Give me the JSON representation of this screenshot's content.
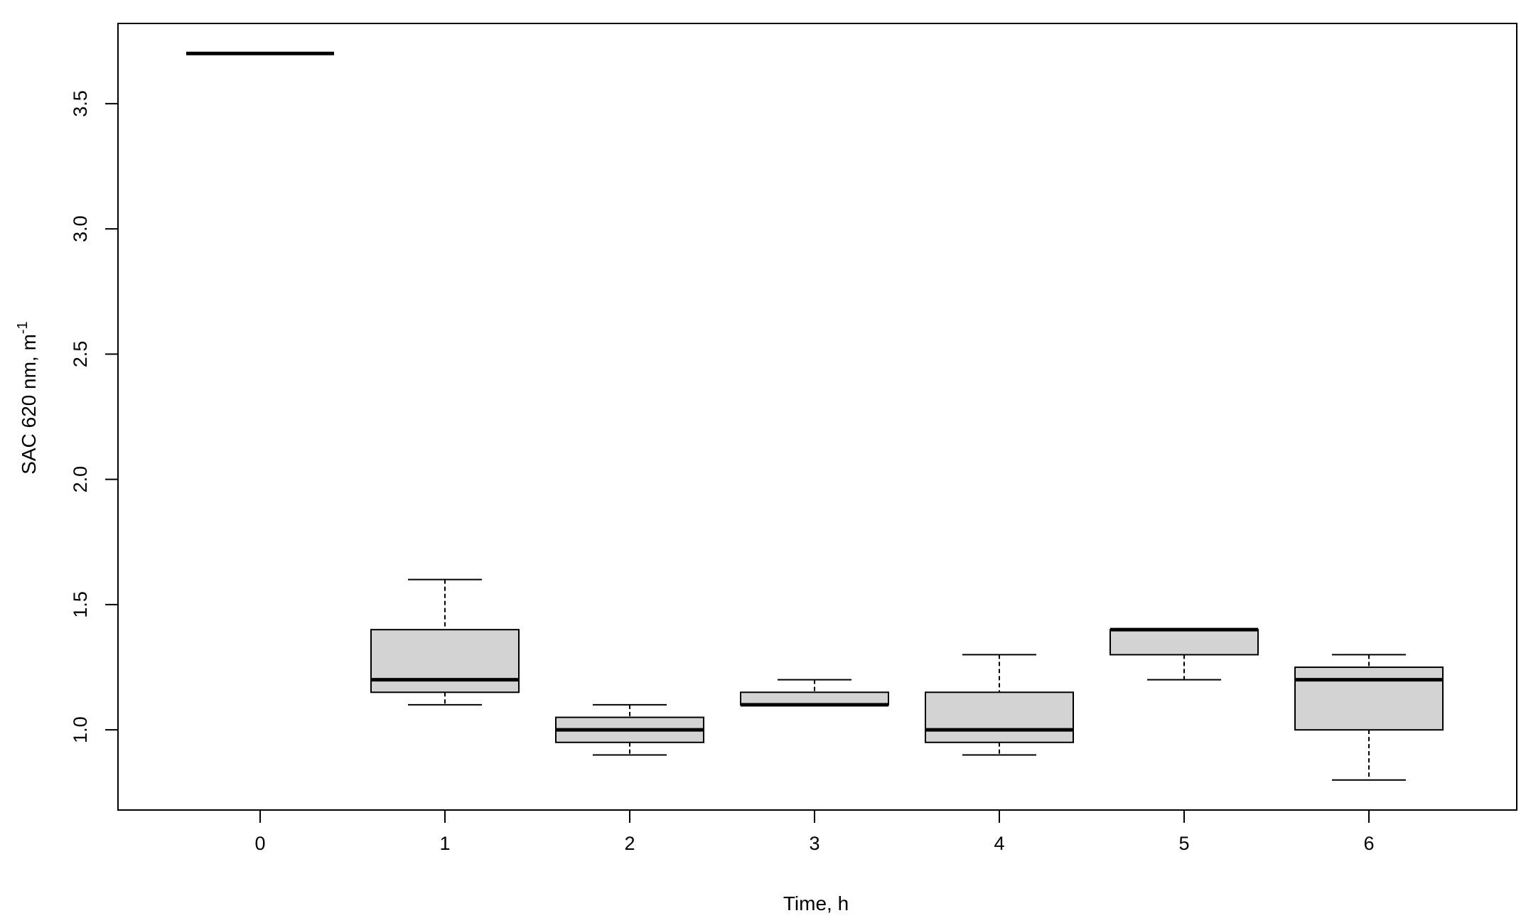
{
  "chart_data": {
    "type": "boxplot",
    "xlabel": "Time, h",
    "ylabel": "SAC 620 nm, m",
    "ylabel_superscript": "-1",
    "categories": [
      "0",
      "1",
      "2",
      "3",
      "4",
      "5",
      "6"
    ],
    "y_ticks": [
      "1.0",
      "1.5",
      "2.0",
      "2.5",
      "3.0",
      "3.5"
    ],
    "ylim": [
      0.68,
      3.82
    ],
    "grid": false,
    "box_fill": "#d3d3d3",
    "stroke_color": "#000000",
    "boxes": [
      {
        "category": "0",
        "min": 3.7,
        "q1": 3.7,
        "median": 3.7,
        "q3": 3.7,
        "max": 3.7
      },
      {
        "category": "1",
        "min": 1.1,
        "q1": 1.15,
        "median": 1.2,
        "q3": 1.4,
        "max": 1.6
      },
      {
        "category": "2",
        "min": 0.9,
        "q1": 0.95,
        "median": 1.0,
        "q3": 1.05,
        "max": 1.1
      },
      {
        "category": "3",
        "min": 1.1,
        "q1": 1.1,
        "median": 1.1,
        "q3": 1.15,
        "max": 1.2
      },
      {
        "category": "4",
        "min": 0.9,
        "q1": 0.95,
        "median": 1.0,
        "q3": 1.15,
        "max": 1.3
      },
      {
        "category": "5",
        "min": 1.2,
        "q1": 1.3,
        "median": 1.4,
        "q3": 1.4,
        "max": 1.4
      },
      {
        "category": "6",
        "min": 0.8,
        "q1": 1.0,
        "median": 1.2,
        "q3": 1.25,
        "max": 1.3
      }
    ]
  }
}
